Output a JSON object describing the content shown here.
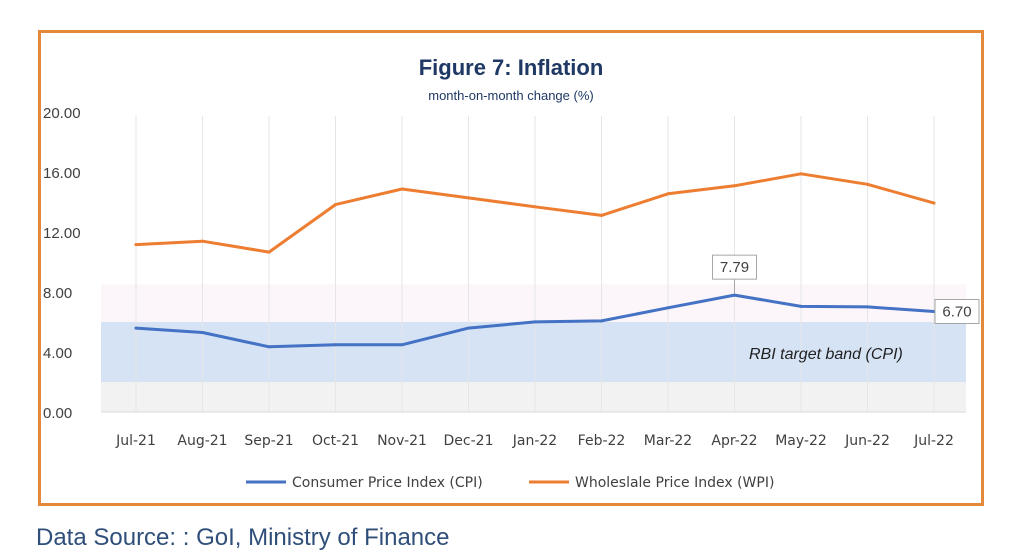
{
  "chart_data": {
    "type": "line",
    "title": "Figure 7: Inflation",
    "subtitle": "month-on-month change (%)",
    "categories": [
      "Jul-21",
      "Aug-21",
      "Sep-21",
      "Oct-21",
      "Nov-21",
      "Dec-21",
      "Jan-22",
      "Feb-22",
      "Mar-22",
      "Apr-22",
      "May-22",
      "Jun-22",
      "Jul-22"
    ],
    "series": [
      {
        "name": "Consumer Price Index (CPI)",
        "color": "#4472C4",
        "values": [
          5.59,
          5.3,
          4.35,
          4.48,
          4.48,
          5.59,
          6.01,
          6.07,
          6.95,
          7.79,
          7.04,
          7.01,
          6.7
        ]
      },
      {
        "name": "Wholeslale Price Index (WPI)",
        "color": "#ED7D31",
        "values": [
          11.16,
          11.39,
          10.66,
          13.83,
          14.87,
          14.27,
          13.68,
          13.11,
          14.55,
          15.08,
          15.88,
          15.18,
          13.93
        ]
      }
    ],
    "ylim": [
      0,
      20
    ],
    "yticks": [
      "0.00",
      "4.00",
      "8.00",
      "12.00",
      "16.00",
      "20.00"
    ],
    "ytick_values": [
      0,
      4,
      8,
      12,
      16,
      20
    ],
    "band": {
      "label": "RBI target band (CPI)",
      "range": [
        2,
        6
      ]
    },
    "annotations": [
      {
        "text": "7.79",
        "series": 0,
        "index": 9
      },
      {
        "text": "6.70",
        "series": 0,
        "index": 12
      }
    ],
    "legend_position": "bottom",
    "grid": "vertical"
  },
  "footer": {
    "source": "Data Source: : GoI, Ministry of Finance"
  }
}
